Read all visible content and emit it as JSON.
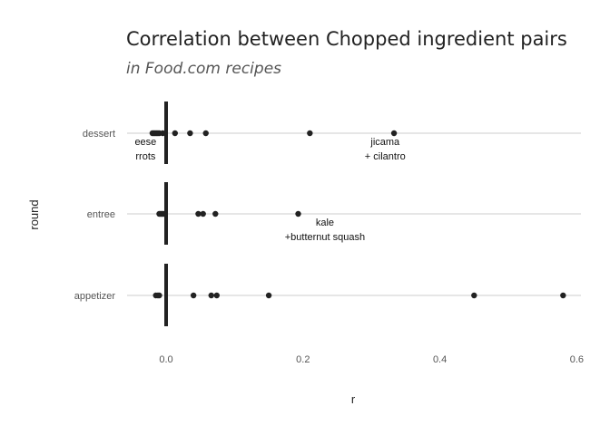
{
  "chart_data": {
    "type": "scatter",
    "title": "Correlation between Chopped ingredient pairs",
    "subtitle": "in Food.com recipes",
    "xlabel": "r",
    "ylabel": "round",
    "xlim": [
      -0.06,
      0.6
    ],
    "x_ticks": [
      {
        "value": 0.0,
        "label": "0.0"
      },
      {
        "value": 0.2,
        "label": "0.2"
      },
      {
        "value": 0.4,
        "label": "0.4"
      },
      {
        "value": 0.6,
        "label": "0.6"
      }
    ],
    "categories": [
      "dessert",
      "entree",
      "appetizer"
    ],
    "grid": "horizontal",
    "reference_line": 0,
    "series": [
      {
        "category": "dessert",
        "values": [
          -0.02,
          -0.018,
          -0.016,
          -0.014,
          -0.012,
          -0.01,
          -0.005,
          0.013,
          0.035,
          0.058,
          0.21,
          0.333
        ]
      },
      {
        "category": "entree",
        "values": [
          -0.01,
          -0.008,
          -0.006,
          -0.004,
          0.047,
          0.054,
          0.072,
          0.193
        ]
      },
      {
        "category": "appetizer",
        "values": [
          -0.015,
          -0.012,
          -0.01,
          0.04,
          0.066,
          0.074,
          0.15,
          0.45,
          0.58
        ]
      }
    ],
    "annotations": [
      {
        "category": "dessert",
        "x": -0.03,
        "lines": [
          "eese",
          "rrots"
        ]
      },
      {
        "category": "dessert",
        "x": 0.32,
        "lines": [
          "jicama",
          "+ cilantro"
        ]
      },
      {
        "category": "entree",
        "x": 0.232,
        "lines": [
          "kale",
          "+butternut squash"
        ]
      }
    ]
  }
}
